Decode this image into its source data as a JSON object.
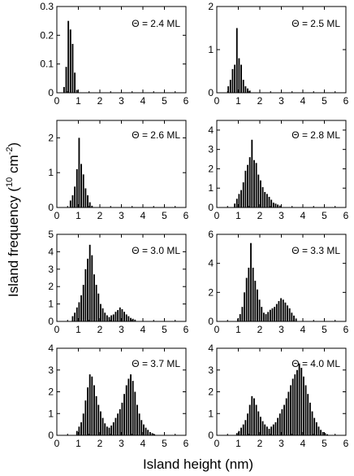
{
  "figure": {
    "xlabel": "Island height (nm)",
    "ylabel": "Island frequency (10",
    "ylabel_exp1": "10",
    "ylabel_mid": " cm",
    "ylabel_exp2": "-2",
    "ylabel_end": ")"
  },
  "chart_data": [
    {
      "type": "bar",
      "label": "Θ = 2.4 ML",
      "x": [
        0.35,
        0.45,
        0.55,
        0.65,
        0.75,
        0.85,
        0.95
      ],
      "values": [
        0.02,
        0.09,
        0.25,
        0.22,
        0.17,
        0.07,
        0.01
      ],
      "xlim": [
        0,
        6
      ],
      "ylim": [
        0,
        0.3
      ],
      "xticks": [
        "0",
        "1",
        "2",
        "3",
        "4",
        "5",
        "6"
      ],
      "yticks": [
        "0",
        "0.1",
        "0.2",
        "0.3"
      ]
    },
    {
      "type": "bar",
      "label": "Θ = 2.5 ML",
      "x": [
        0.55,
        0.65,
        0.75,
        0.85,
        0.95,
        1.05,
        1.15,
        1.25,
        1.35,
        1.45,
        1.55
      ],
      "values": [
        0.15,
        0.3,
        0.55,
        0.65,
        1.5,
        0.8,
        0.65,
        0.3,
        0.15,
        0.1,
        0.05
      ],
      "xlim": [
        0,
        6
      ],
      "ylim": [
        0,
        2
      ],
      "xticks": [
        "0",
        "1",
        "2",
        "3",
        "4",
        "5",
        "6"
      ],
      "yticks": [
        "0",
        "1",
        "2"
      ]
    },
    {
      "type": "bar",
      "label": "Θ = 2.6 ML",
      "x": [
        0.65,
        0.75,
        0.85,
        0.95,
        1.05,
        1.15,
        1.25,
        1.35,
        1.45,
        1.55,
        1.65
      ],
      "values": [
        0.2,
        0.35,
        0.6,
        1.1,
        2.0,
        1.25,
        0.95,
        0.55,
        0.35,
        0.15,
        0.05
      ],
      "xlim": [
        0,
        6
      ],
      "ylim": [
        0,
        2.5
      ],
      "xticks": [
        "0",
        "1",
        "2",
        "3",
        "4",
        "5",
        "6"
      ],
      "yticks": [
        "0",
        "1",
        "2"
      ]
    },
    {
      "type": "bar",
      "label": "Θ = 2.8 ML",
      "x": [
        0.85,
        0.95,
        1.05,
        1.15,
        1.25,
        1.35,
        1.45,
        1.55,
        1.65,
        1.75,
        1.85,
        1.95,
        2.05,
        2.15,
        2.25,
        2.35,
        2.45,
        2.55,
        2.65,
        2.75,
        2.85,
        2.95
      ],
      "values": [
        0.2,
        0.45,
        0.7,
        0.9,
        1.3,
        1.9,
        2.2,
        2.6,
        3.5,
        2.45,
        2.3,
        1.7,
        1.4,
        1.05,
        0.8,
        0.7,
        0.55,
        0.4,
        0.25,
        0.2,
        0.15,
        0.1
      ],
      "xlim": [
        0,
        6
      ],
      "ylim": [
        0,
        4.5
      ],
      "xticks": [
        "0",
        "1",
        "2",
        "3",
        "4",
        "5",
        "6"
      ],
      "yticks": [
        "0",
        "1",
        "2",
        "3",
        "4"
      ]
    },
    {
      "type": "bar",
      "label": "Θ = 3.0 ML",
      "x": [
        0.75,
        0.85,
        0.95,
        1.05,
        1.15,
        1.25,
        1.35,
        1.45,
        1.55,
        1.65,
        1.75,
        1.85,
        1.95,
        2.05,
        2.15,
        2.25,
        2.35,
        2.45,
        2.55,
        2.65,
        2.75,
        2.85,
        2.95,
        3.05,
        3.15,
        3.25,
        3.35,
        3.45,
        3.55,
        3.65
      ],
      "values": [
        0.3,
        0.5,
        0.8,
        1.1,
        1.5,
        2.1,
        3.0,
        3.6,
        4.4,
        3.8,
        2.7,
        2.1,
        1.6,
        1.0,
        0.75,
        0.5,
        0.35,
        0.25,
        0.35,
        0.4,
        0.55,
        0.65,
        0.8,
        0.7,
        0.55,
        0.4,
        0.3,
        0.2,
        0.15,
        0.1
      ],
      "xlim": [
        0,
        6
      ],
      "ylim": [
        0,
        5
      ],
      "xticks": [
        "0",
        "1",
        "2",
        "3",
        "4",
        "5",
        "6"
      ],
      "yticks": [
        "0",
        "1",
        "2",
        "3",
        "4",
        "5"
      ]
    },
    {
      "type": "bar",
      "label": "Θ = 3.3 ML",
      "x": [
        1.0,
        1.1,
        1.2,
        1.3,
        1.4,
        1.5,
        1.6,
        1.7,
        1.8,
        1.9,
        2.0,
        2.1,
        2.2,
        2.3,
        2.4,
        2.5,
        2.6,
        2.7,
        2.8,
        2.9,
        3.0,
        3.1,
        3.2,
        3.3,
        3.4,
        3.5,
        3.6,
        3.7
      ],
      "values": [
        0.2,
        0.5,
        1.0,
        2.0,
        3.0,
        3.7,
        5.4,
        3.7,
        2.8,
        2.2,
        1.5,
        1.0,
        0.6,
        0.5,
        0.65,
        0.8,
        0.9,
        1.0,
        1.2,
        1.4,
        1.6,
        1.5,
        1.3,
        1.1,
        0.9,
        0.6,
        0.4,
        0.2
      ],
      "xlim": [
        0,
        6
      ],
      "ylim": [
        0,
        6
      ],
      "xticks": [
        "0",
        "1",
        "2",
        "3",
        "4",
        "5",
        "6"
      ],
      "yticks": [
        "0",
        "2",
        "4",
        "6"
      ]
    },
    {
      "type": "bar",
      "label": "Θ = 3.7 ML",
      "x": [
        0.95,
        1.05,
        1.15,
        1.25,
        1.35,
        1.45,
        1.55,
        1.65,
        1.75,
        1.85,
        1.95,
        2.05,
        2.15,
        2.25,
        2.35,
        2.45,
        2.55,
        2.65,
        2.75,
        2.85,
        2.95,
        3.05,
        3.15,
        3.25,
        3.35,
        3.45,
        3.55,
        3.65,
        3.75,
        3.85,
        3.95,
        4.05,
        4.15,
        4.25,
        4.35,
        4.45,
        4.55
      ],
      "values": [
        0.2,
        0.4,
        0.6,
        1.0,
        1.6,
        2.2,
        2.8,
        2.7,
        2.3,
        1.8,
        1.4,
        1.1,
        0.8,
        0.55,
        0.4,
        0.35,
        0.45,
        0.6,
        0.8,
        1.0,
        1.2,
        1.5,
        1.9,
        2.3,
        2.6,
        2.8,
        2.5,
        2.0,
        1.4,
        1.0,
        0.7,
        0.5,
        0.35,
        0.25,
        0.15,
        0.1,
        0.05
      ],
      "xlim": [
        0,
        6
      ],
      "ylim": [
        0,
        4
      ],
      "xticks": [
        "0",
        "1",
        "2",
        "3",
        "4",
        "5",
        "6"
      ],
      "yticks": [
        "0",
        "1",
        "2",
        "3",
        "4"
      ]
    },
    {
      "type": "bar",
      "label": "Θ = 4.0 ML",
      "x": [
        0.95,
        1.05,
        1.15,
        1.25,
        1.35,
        1.45,
        1.55,
        1.65,
        1.75,
        1.85,
        1.95,
        2.05,
        2.15,
        2.25,
        2.35,
        2.45,
        2.55,
        2.65,
        2.75,
        2.85,
        2.95,
        3.05,
        3.15,
        3.25,
        3.35,
        3.45,
        3.55,
        3.65,
        3.75,
        3.85,
        3.95,
        4.05,
        4.15,
        4.25,
        4.35,
        4.45,
        4.55,
        4.65,
        4.75,
        4.85,
        4.95,
        5.05,
        5.15
      ],
      "values": [
        0.1,
        0.2,
        0.35,
        0.5,
        0.7,
        1.0,
        1.4,
        1.8,
        1.7,
        1.4,
        1.1,
        0.85,
        0.65,
        0.5,
        0.4,
        0.3,
        0.4,
        0.5,
        0.6,
        0.8,
        1.0,
        1.2,
        1.4,
        1.7,
        2.0,
        2.3,
        2.6,
        2.8,
        3.0,
        3.3,
        3.1,
        2.7,
        2.3,
        1.9,
        1.5,
        1.1,
        0.8,
        0.6,
        0.4,
        0.25,
        0.15,
        0.1,
        0.05
      ],
      "xlim": [
        0,
        6
      ],
      "ylim": [
        0,
        4
      ],
      "xticks": [
        "0",
        "1",
        "2",
        "3",
        "4",
        "5",
        "6"
      ],
      "yticks": [
        "0",
        "1",
        "2",
        "3",
        "4"
      ]
    }
  ]
}
